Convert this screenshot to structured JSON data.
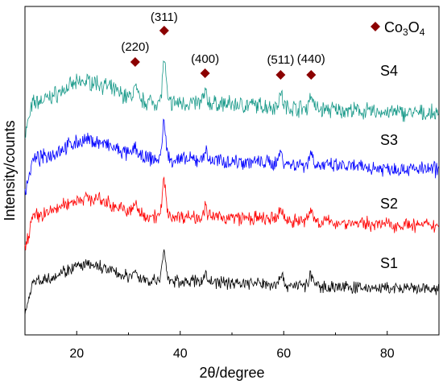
{
  "chart_data": {
    "type": "line",
    "xlabel": "2θ/degree",
    "ylabel": "Intensity/counts",
    "xlim": [
      10,
      90
    ],
    "x_ticks": [
      "20",
      "40",
      "60",
      "80"
    ],
    "y_ticks_shown": false,
    "grid": false,
    "legend": {
      "position": "top-right",
      "marker": "diamond",
      "marker_color": "#8b0000",
      "label_main": "Co",
      "label_sub1": "3",
      "label_mid": "O",
      "label_sub2": "4"
    },
    "peaks": [
      {
        "hkl": "(220)",
        "two_theta": 31.3
      },
      {
        "hkl": "(311)",
        "two_theta": 36.9
      },
      {
        "hkl": "(400)",
        "two_theta": 44.8
      },
      {
        "hkl": "(511)",
        "two_theta": 59.4
      },
      {
        "hkl": "(440)",
        "two_theta": 65.3
      }
    ],
    "series": [
      {
        "name": "S4",
        "color": "#1a9a8a",
        "offset": 3,
        "scale": 1.0
      },
      {
        "name": "S3",
        "color": "#0000ff",
        "offset": 2,
        "scale": 0.9
      },
      {
        "name": "S2",
        "color": "#ff0000",
        "offset": 1,
        "scale": 0.85
      },
      {
        "name": "S1",
        "color": "#000000",
        "offset": 0,
        "scale": 0.75
      }
    ]
  }
}
